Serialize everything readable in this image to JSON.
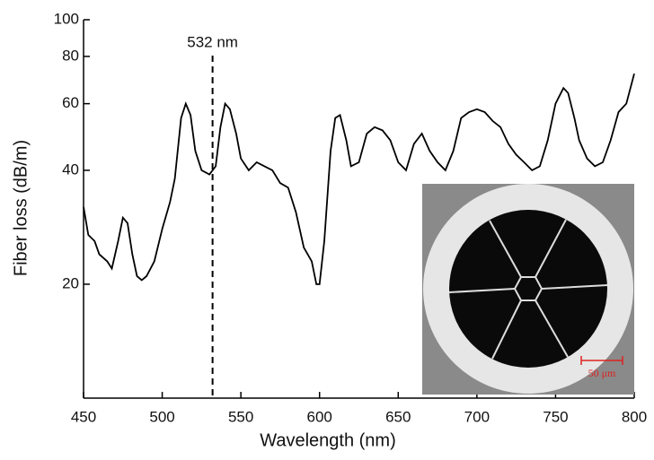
{
  "chart_data": {
    "type": "line",
    "xlabel": "Wavelength (nm)",
    "ylabel": "Fiber loss (dB/m)",
    "xlim": [
      450,
      800
    ],
    "xticks": [
      450,
      500,
      550,
      600,
      650,
      700,
      750,
      800
    ],
    "ylim": [
      10,
      100
    ],
    "yticks": [
      20,
      40,
      60,
      80,
      100
    ],
    "log_y": true,
    "annotation": {
      "text": "532 nm",
      "x": 532
    },
    "inset_scale_label": "50 μm",
    "series": [
      {
        "color": "#000000",
        "x": [
          450,
          453,
          457,
          460,
          465,
          468,
          472,
          475,
          478,
          481,
          484,
          487,
          490,
          495,
          500,
          505,
          508,
          512,
          515,
          518,
          521,
          525,
          530,
          534,
          537,
          540,
          543,
          547,
          550,
          555,
          560,
          565,
          570,
          575,
          580,
          585,
          590,
          595,
          598,
          600,
          603,
          607,
          610,
          613,
          617,
          620,
          625,
          630,
          635,
          640,
          645,
          650,
          655,
          660,
          665,
          670,
          675,
          680,
          685,
          690,
          695,
          700,
          705,
          710,
          715,
          720,
          725,
          730,
          735,
          740,
          745,
          750,
          755,
          758,
          762,
          765,
          770,
          775,
          780,
          785,
          790,
          795,
          800
        ],
        "values": [
          32,
          27,
          26,
          24,
          23,
          22,
          26,
          30,
          29,
          24,
          21,
          20.5,
          21,
          23,
          28,
          33,
          38,
          55,
          60,
          56,
          45,
          40,
          39,
          41,
          52,
          60,
          58,
          50,
          43,
          40,
          42,
          41,
          40,
          37,
          36,
          31,
          25,
          23,
          20,
          20,
          26,
          45,
          55,
          56,
          48,
          41,
          42,
          50,
          52,
          51,
          48,
          42,
          40,
          47,
          50,
          45,
          42,
          40,
          45,
          55,
          57,
          58,
          57,
          54,
          52,
          47,
          44,
          42,
          40,
          41,
          48,
          60,
          66,
          64,
          55,
          48,
          43,
          41,
          42,
          48,
          57,
          60,
          72
        ]
      }
    ]
  }
}
